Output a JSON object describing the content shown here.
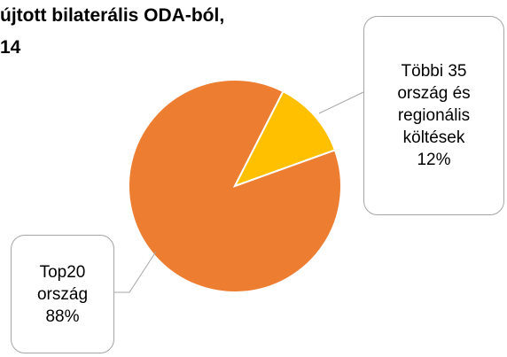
{
  "chart_data": {
    "type": "pie",
    "title_lines": [
      "újtott bilaterális ODA-ból,",
      "14"
    ],
    "categories": [
      "Top20 ország",
      "Többi 35 ország és regionális költések"
    ],
    "values": [
      88,
      12
    ],
    "value_labels": [
      "88%",
      "12%"
    ],
    "colors": [
      "#ED7D31",
      "#FFC000"
    ]
  }
}
